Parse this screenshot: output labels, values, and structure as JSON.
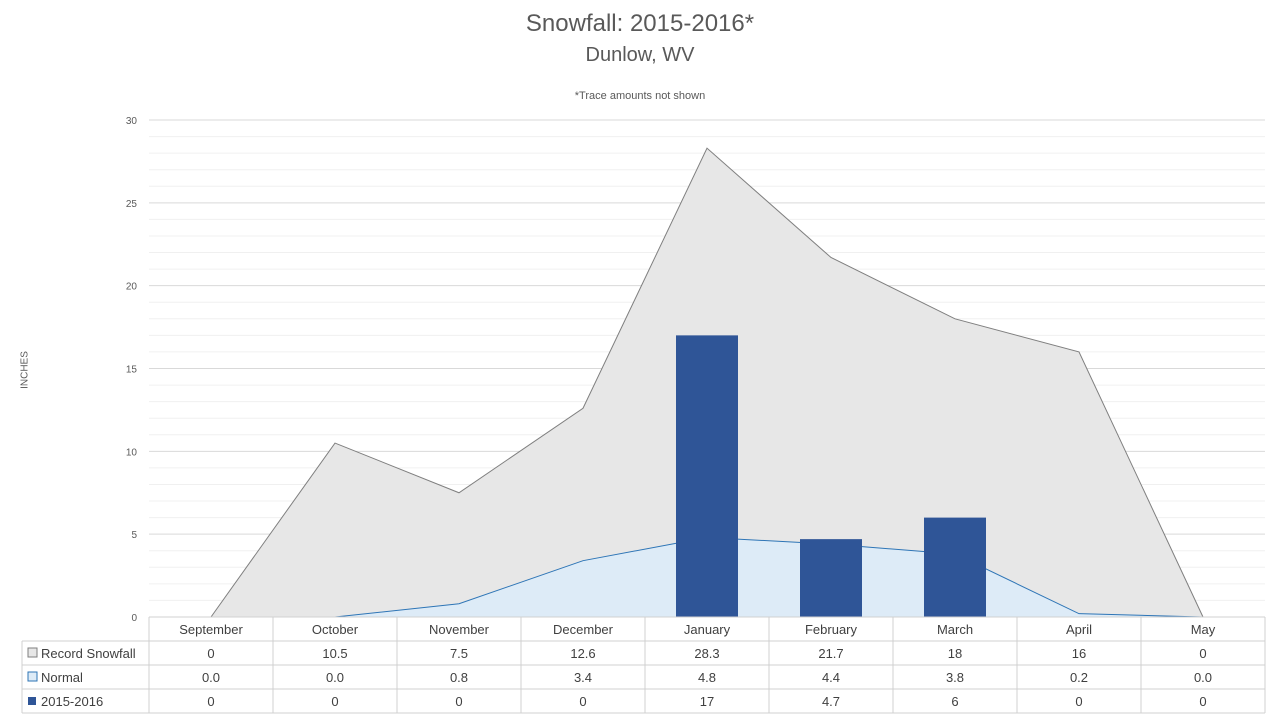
{
  "chart_data": {
    "type": "area",
    "title": "Snowfall: 2015-2016*",
    "subtitle": "Dunlow, WV",
    "note": "*Trace amounts not shown",
    "ylabel": "INCHES",
    "ylim": [
      0,
      30
    ],
    "yticks": [
      0,
      5,
      10,
      15,
      20,
      25,
      30
    ],
    "grid": true,
    "categories": [
      "September",
      "October",
      "November",
      "December",
      "January",
      "February",
      "March",
      "April",
      "May"
    ],
    "series": [
      {
        "name": "Record Snowfall",
        "type": "area",
        "color": "#e7e7e7",
        "stroke": "#7f7f7f",
        "values": [
          0,
          10.5,
          7.5,
          12.6,
          28.3,
          21.7,
          18,
          16,
          0
        ],
        "labels": [
          "0",
          "10.5",
          "7.5",
          "12.6",
          "28.3",
          "21.7",
          "18",
          "16",
          "0"
        ]
      },
      {
        "name": "Normal",
        "type": "area",
        "color": "#ddebf7",
        "stroke": "#2e75b6",
        "values": [
          0.0,
          0.0,
          0.8,
          3.4,
          4.8,
          4.4,
          3.8,
          0.2,
          0.0
        ],
        "labels": [
          "0.0",
          "0.0",
          "0.8",
          "3.4",
          "4.8",
          "4.4",
          "3.8",
          "0.2",
          "0.0"
        ]
      },
      {
        "name": "2015-2016",
        "type": "bar",
        "color": "#2f5597",
        "values": [
          0,
          0,
          0,
          0,
          17,
          4.7,
          6,
          0,
          0
        ],
        "labels": [
          "0",
          "0",
          "0",
          "0",
          "17",
          "4.7",
          "6",
          "0",
          "0"
        ]
      }
    ]
  }
}
